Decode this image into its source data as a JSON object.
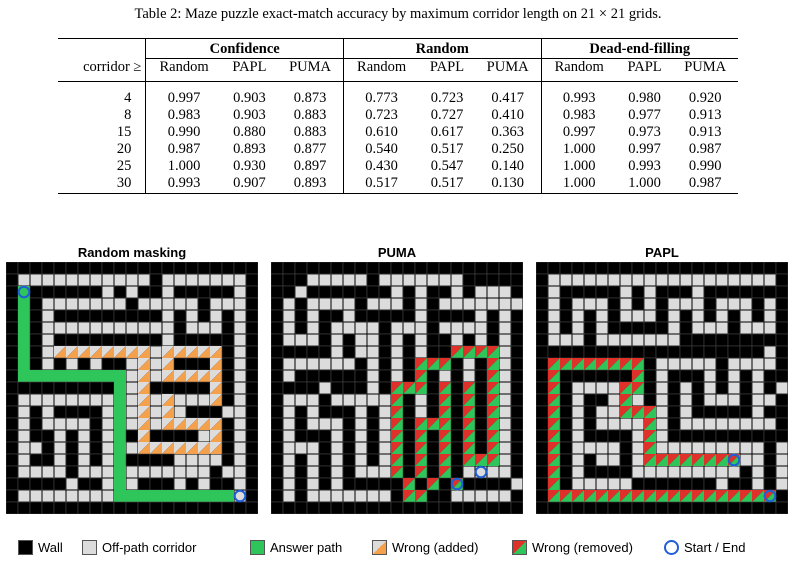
{
  "caption": "Table 2: Maze puzzle exact-match accuracy by maximum corridor length on 21 × 21 grids.",
  "table": {
    "groups": [
      "Confidence",
      "Random",
      "Dead-end-filling"
    ],
    "row_header": "corridor ≥",
    "subheaders": [
      "Random",
      "PAPL",
      "PUMA",
      "Random",
      "PAPL",
      "PUMA",
      "Random",
      "PAPL",
      "PUMA"
    ],
    "rows": [
      {
        "corridor": "4",
        "vals": [
          "0.997",
          "0.903",
          "0.873",
          "0.773",
          "0.723",
          "0.417",
          "0.993",
          "0.980",
          "0.920"
        ]
      },
      {
        "corridor": "8",
        "vals": [
          "0.983",
          "0.903",
          "0.883",
          "0.723",
          "0.727",
          "0.410",
          "0.983",
          "0.977",
          "0.913"
        ]
      },
      {
        "corridor": "15",
        "vals": [
          "0.990",
          "0.880",
          "0.883",
          "0.610",
          "0.617",
          "0.363",
          "0.997",
          "0.973",
          "0.913"
        ]
      },
      {
        "corridor": "20",
        "vals": [
          "0.987",
          "0.893",
          "0.877",
          "0.540",
          "0.517",
          "0.250",
          "1.000",
          "0.997",
          "0.987"
        ]
      },
      {
        "corridor": "25",
        "vals": [
          "1.000",
          "0.930",
          "0.897",
          "0.430",
          "0.547",
          "0.140",
          "1.000",
          "0.993",
          "0.990"
        ]
      },
      {
        "corridor": "30",
        "vals": [
          "0.993",
          "0.907",
          "0.893",
          "0.517",
          "0.517",
          "0.130",
          "1.000",
          "1.000",
          "0.987"
        ]
      }
    ]
  },
  "panels": [
    {
      "title": "Random masking",
      "grid": [
        "#####################",
        "#...........#.......#",
        "#G######.#.##.#####.#",
        "#G#.......#.....#...#",
        "#G#.#########.#.#.#.#",
        "#G#...........#...#.#",
        "#G#.#########.#####.#",
        "#G#.AAAAAAAA.AAAAA#.#",
        "#G#.#.#.##.A.A###A#.#",
        "#GGGGGGGGG.A.AAAAA#.#",
        "#########G.A#####A#.#",
        "#........G.A.A...A#.#",
        "#.#.####.G.A.A.###..#",
        "#.#....#.G.A.AAAAA#.#",
        "#.##.#.#.G#A####.A#.#",
        "#..#.#.#.G.AAAAAAA#.#",
        "#.##.#.#.G####....#.#",
        "#....#...G.......#..#",
        "#####.##.G.###.#.##.#",
        "#........GGGGGGGGGG.#",
        "#####################"
      ],
      "markers": [
        [
          2,
          1
        ],
        [
          19,
          19
        ]
      ]
    },
    {
      "title": "PUMA",
      "grid": [
        "#####################",
        "###.....#.......#####",
        "##.#######.#.##.#...#",
        "#.#....#...#.#.......",
        "#.#.##.#####.####.#.#",
        "#.#.#....#...#....#.#",
        "#...#.#..#.#.##.#.#.#",
        "#####.#..#.#.##RRRR.#",
        "#......#.#.#RRR#.#R.#",
        "#.######.#.#R#.#.#R.#",
        "####.###.#RRR#R#R#R.#",
        "#...#.....R#.#R#R#R.#",
        "#.#.###.#.R#.#R#R#R.#",
        "#.#...#.#.R#RRR#R#R.#",
        "#.###.#.#.R#R#R#R#R.#",
        "#...#.#.#.R#R#R#R#R.#",
        "#.#.#.#.#.R#R#R#RRR.#",
        "#.#.#.#...R#R#R#....#",
        "#.#.#.#####R#R#R####.",
        "#.#.......#RR##.....#",
        "#####################"
      ],
      "markers": [
        [
          18,
          15
        ],
        [
          17,
          17
        ]
      ]
    },
    {
      "title": "PAPL",
      "grid": [
        "#####################",
        "#...................#",
        "#.#####.#.###.#######",
        "#.#...#.#.#...#...#.#",
        "#.#.#.#...#.#.#.#.#.#",
        "#.#.#.#####.#...#...#",
        "#...#.......#########",
        "###################.#",
        "#RRRRRRRR#.....#....#",
        "#R######R#.###.#.#.##",
        "#R#....RR#.#.#.#.#.#.",
        "#R#.##.R.#.#.#...#..#",
        "#R#.#..RRR.#.#####.##",
        "#R#.#....R.#........#",
        "#R#.####.R.###########",
        "#R#....#.R.........#.#",
        "#R#.#..#.RRRRRRRR..#.#",
        "#R#.####.........#.#.#",
        "#R#.....#######.##.#.#",
        "#RRRRRRRRRRRRRRRRRRR#",
        "#####################"
      ],
      "markers": [
        [
          16,
          16
        ],
        [
          19,
          19
        ]
      ]
    }
  ],
  "legend": [
    {
      "key": "wall",
      "label": "Wall"
    },
    {
      "key": "corridor",
      "label": "Off-path corridor"
    },
    {
      "key": "answer",
      "label": "Answer path"
    },
    {
      "key": "added",
      "label": "Wrong (added)"
    },
    {
      "key": "removed",
      "label": "Wrong (removed)"
    },
    {
      "key": "startend",
      "label": "Start / End"
    }
  ],
  "colors": {
    "wall": "#000000",
    "corridor": "#dcdcdc",
    "answer": "#2ec55a",
    "orange": "#f5a04a",
    "red": "#e0302a",
    "green": "#2ec55a",
    "marker": "#1f5fd6"
  }
}
